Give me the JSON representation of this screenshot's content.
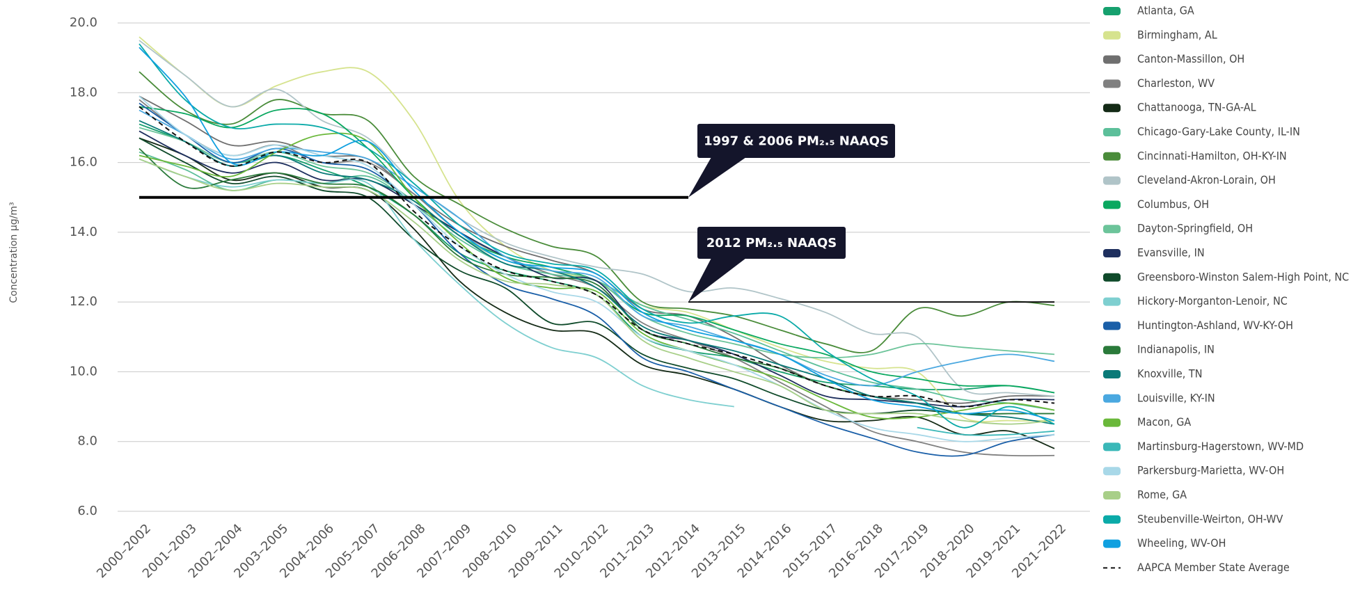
{
  "chart_data": {
    "type": "line",
    "ylabel": "Concentration µg/m³",
    "categories": [
      "2000–2002",
      "2001–2003",
      "2002–2004",
      "2003–2005",
      "2004–2006",
      "2005–2007",
      "2006–2008",
      "2007–2009",
      "2008–2010",
      "2009–2011",
      "2010–2012",
      "2011–2013",
      "2012–2014",
      "2013–2015",
      "2014–2016",
      "2015–2017",
      "2016–2018",
      "2017–2019",
      "2018–2020",
      "2019–2021",
      "2021–2022"
    ],
    "ylim": [
      6,
      20
    ],
    "yticks": [
      {
        "value": 6,
        "label": "6.0"
      },
      {
        "value": 8,
        "label": "8.0"
      },
      {
        "value": 10,
        "label": "10.0"
      },
      {
        "value": 12,
        "label": "12.0"
      },
      {
        "value": 14,
        "label": "14.0"
      },
      {
        "value": 16,
        "label": "16.0"
      },
      {
        "value": 18,
        "label": "18.0"
      },
      {
        "value": 20,
        "label": "20.0"
      }
    ],
    "grid": true,
    "legend": "right",
    "annotations": [
      {
        "label": "1997 & 2006 PM₂.₅ NAAQS",
        "value": 15
      },
      {
        "label": "2012 PM₂.₅ NAAQS",
        "value": 12
      }
    ],
    "series": [
      {
        "name": "Atlanta, GA",
        "color": "#16a06e",
        "values": [
          17.1,
          16.6,
          16.0,
          16.2,
          15.8,
          15.3,
          14.5,
          13.4,
          12.9,
          12.6,
          12.2,
          11.0,
          10.6,
          10.4,
          10.0,
          9.7,
          9.6,
          9.5,
          9.5,
          9.6,
          9.4
        ]
      },
      {
        "name": "Birmingham, AL",
        "color": "#d6e38e",
        "values": [
          19.6,
          18.5,
          17.6,
          18.2,
          18.6,
          18.6,
          17.2,
          14.9,
          13.6,
          12.9,
          12.6,
          11.9,
          11.7,
          11.2,
          10.7,
          10.3,
          10.1,
          10.0,
          8.7,
          8.6,
          8.6
        ]
      },
      {
        "name": "Canton-Massillon, OH",
        "color": "#6f6f6f",
        "values": [
          17.9,
          17.2,
          16.5,
          16.6,
          16.2,
          16.1,
          15.1,
          14.2,
          13.6,
          13.2,
          12.8,
          11.8,
          11.6,
          11.0,
          10.2,
          9.6,
          9.3,
          9.2,
          9.1,
          9.3,
          9.3
        ]
      },
      {
        "name": "Charleston, WV",
        "color": "#808080",
        "values": [
          17.8,
          16.8,
          16.2,
          16.5,
          16.0,
          16.0,
          15.1,
          14.0,
          13.3,
          12.8,
          12.4,
          11.4,
          10.9,
          10.4,
          9.7,
          9.0,
          8.3,
          8.0,
          7.7,
          7.6,
          7.6
        ]
      },
      {
        "name": "Chattanooga, TN-GA-AL",
        "color": "#142a16",
        "values": [
          16.7,
          16.2,
          15.5,
          15.7,
          15.3,
          15.2,
          14.1,
          12.6,
          11.7,
          11.2,
          11.1,
          10.2,
          9.9,
          9.5,
          9.0,
          8.6,
          8.6,
          8.7,
          8.2,
          8.3,
          7.8
        ]
      },
      {
        "name": "Chicago-Gary-Lake County, IL-IN",
        "color": "#5cbf9a",
        "values": [
          16.3,
          15.8,
          15.2,
          15.5,
          15.4,
          15.6,
          14.8,
          13.8,
          13.1,
          12.8,
          12.6,
          11.9,
          11.5,
          11.1,
          10.6,
          10.1,
          9.7,
          9.5,
          9.2,
          9.1,
          8.9
        ]
      },
      {
        "name": "Cincinnati-Hamilton, OH-KY-IN",
        "color": "#4a8c3a",
        "values": [
          18.6,
          17.5,
          17.1,
          17.8,
          17.4,
          17.2,
          15.6,
          14.8,
          14.1,
          13.6,
          13.3,
          12.0,
          11.8,
          11.6,
          11.2,
          10.8,
          10.6,
          11.8,
          11.6,
          12.0,
          11.9
        ]
      },
      {
        "name": "Cleveland-Akron-Lorain, OH",
        "color": "#b0c4c8",
        "values": [
          19.5,
          18.5,
          17.6,
          18.1,
          17.2,
          16.7,
          15.4,
          14.4,
          13.7,
          13.3,
          13.0,
          12.8,
          12.3,
          12.4,
          12.1,
          11.7,
          11.1,
          11.0,
          9.5,
          9.4,
          9.3
        ]
      },
      {
        "name": "Columbus, OH",
        "color": "#0aa860",
        "values": [
          17.6,
          17.4,
          17.0,
          17.5,
          17.4,
          16.4,
          15.0,
          13.9,
          13.3,
          13.0,
          12.6,
          11.7,
          11.6,
          11.2,
          10.8,
          10.5,
          10.0,
          9.8,
          9.6,
          9.6,
          9.4
        ]
      },
      {
        "name": "Dayton-Springfield, OH",
        "color": "#6cc49a",
        "values": [
          17.0,
          16.6,
          16.0,
          16.3,
          15.9,
          15.7,
          14.9,
          13.9,
          13.2,
          12.9,
          12.6,
          11.6,
          11.1,
          10.8,
          10.5,
          10.4,
          10.5,
          10.8,
          10.7,
          10.6,
          10.5
        ]
      },
      {
        "name": "Evansville, IN",
        "color": "#1e2f5e",
        "values": [
          16.9,
          16.2,
          15.7,
          16.0,
          15.5,
          15.5,
          14.8,
          14.0,
          13.3,
          12.7,
          12.6,
          11.2,
          10.9,
          10.5,
          9.9,
          9.3,
          9.2,
          9.1,
          9.0,
          9.2,
          9.2
        ]
      },
      {
        "name": "Greensboro-Winston Salem-High Point, NC",
        "color": "#0f4a2a",
        "values": [
          16.7,
          16.0,
          15.4,
          15.6,
          15.2,
          15.0,
          13.8,
          12.9,
          12.4,
          11.4,
          11.4,
          10.5,
          10.1,
          9.8,
          9.3,
          8.9,
          8.8,
          8.9,
          8.8,
          8.8,
          8.8
        ]
      },
      {
        "name": "Hickory-Morganton-Lenoir, NC",
        "color": "#7ecfd0",
        "values": [
          16.1,
          15.6,
          15.3,
          15.5,
          15.4,
          15.4,
          13.8,
          12.5,
          11.4,
          10.7,
          10.4,
          9.6,
          9.2,
          9.0,
          null,
          null,
          null,
          null,
          null,
          null,
          null
        ]
      },
      {
        "name": "Huntington-Ashland, WV-KY-OH",
        "color": "#1a5fa8",
        "values": [
          17.7,
          16.8,
          16.0,
          16.4,
          16.0,
          15.8,
          14.8,
          13.4,
          12.5,
          12.1,
          11.6,
          10.4,
          10.0,
          9.5,
          9.0,
          8.5,
          8.1,
          7.7,
          7.6,
          8.0,
          8.2
        ]
      },
      {
        "name": "Indianapolis, IN",
        "color": "#2a7a3a",
        "values": [
          16.4,
          15.3,
          15.5,
          15.7,
          15.4,
          15.3,
          14.5,
          13.3,
          12.8,
          12.7,
          12.5,
          11.2,
          10.8,
          10.4,
          10.1,
          9.6,
          9.3,
          9.1,
          8.8,
          8.8,
          8.8
        ]
      },
      {
        "name": "Knoxville, TN",
        "color": "#0a7a78",
        "values": [
          17.2,
          16.6,
          15.9,
          16.2,
          15.7,
          15.5,
          14.9,
          13.9,
          13.1,
          12.9,
          12.4,
          11.3,
          10.9,
          10.6,
          10.2,
          9.8,
          9.3,
          9.1,
          8.8,
          8.7,
          8.5
        ]
      },
      {
        "name": "Louisville, KY-IN",
        "color": "#4aa8e0",
        "values": [
          17.5,
          16.8,
          16.1,
          16.4,
          16.3,
          16.1,
          15.3,
          14.4,
          13.3,
          12.9,
          12.7,
          11.6,
          11.3,
          10.9,
          10.5,
          9.9,
          9.6,
          10.0,
          10.3,
          10.5,
          10.3
        ]
      },
      {
        "name": "Macon, GA",
        "color": "#6ab83a",
        "values": [
          16.2,
          15.9,
          15.6,
          16.3,
          16.8,
          16.6,
          15.0,
          13.7,
          12.7,
          12.4,
          12.3,
          11.1,
          10.6,
          10.2,
          9.8,
          9.2,
          8.7,
          8.7,
          8.9,
          9.1,
          8.9
        ]
      },
      {
        "name": "Martinsburg-Hagerstown, WV-MD",
        "color": "#3ab8b8",
        "values": [
          null,
          null,
          null,
          null,
          null,
          null,
          null,
          null,
          null,
          null,
          null,
          null,
          null,
          null,
          null,
          null,
          null,
          8.4,
          8.2,
          8.2,
          8.3
        ]
      },
      {
        "name": "Parkersburg-Marietta, WV-OH",
        "color": "#a8d8e8",
        "values": [
          17.9,
          16.8,
          16.2,
          16.5,
          16.2,
          15.9,
          14.8,
          13.6,
          12.8,
          12.3,
          12.0,
          11.0,
          10.6,
          10.2,
          9.6,
          8.9,
          8.4,
          8.2,
          8.0,
          8.1,
          8.2
        ]
      },
      {
        "name": "Rome, GA",
        "color": "#a8cf88",
        "values": [
          16.1,
          15.6,
          15.2,
          15.4,
          15.3,
          15.2,
          14.3,
          13.2,
          12.6,
          12.5,
          12.2,
          10.9,
          10.4,
          10.0,
          9.6,
          8.9,
          8.8,
          8.8,
          8.6,
          8.5,
          8.6
        ]
      },
      {
        "name": "Steubenville-Weirton, OH-WV",
        "color": "#0aaaa8",
        "values": [
          19.4,
          17.8,
          17.0,
          17.1,
          17.0,
          16.4,
          15.4,
          14.2,
          13.4,
          13.1,
          12.9,
          11.8,
          11.4,
          11.6,
          11.6,
          10.6,
          9.8,
          9.3,
          8.4,
          9.0,
          8.5
        ]
      },
      {
        "name": "Wheeling, WV-OH",
        "color": "#10a0e0",
        "values": [
          19.3,
          17.9,
          16.0,
          16.3,
          16.2,
          16.6,
          15.2,
          14.0,
          13.2,
          13.0,
          12.8,
          11.7,
          11.2,
          10.9,
          10.5,
          9.8,
          9.2,
          9.0,
          8.8,
          8.9,
          8.6
        ]
      },
      {
        "name": "AAPCA Member State Average",
        "color": "#111111",
        "dash": true,
        "values": [
          17.6,
          16.6,
          15.9,
          16.3,
          16.0,
          16.0,
          14.6,
          13.6,
          12.9,
          12.6,
          12.2,
          11.2,
          10.8,
          10.5,
          10.1,
          9.6,
          9.3,
          9.3,
          9.0,
          9.2,
          9.1
        ]
      }
    ]
  }
}
